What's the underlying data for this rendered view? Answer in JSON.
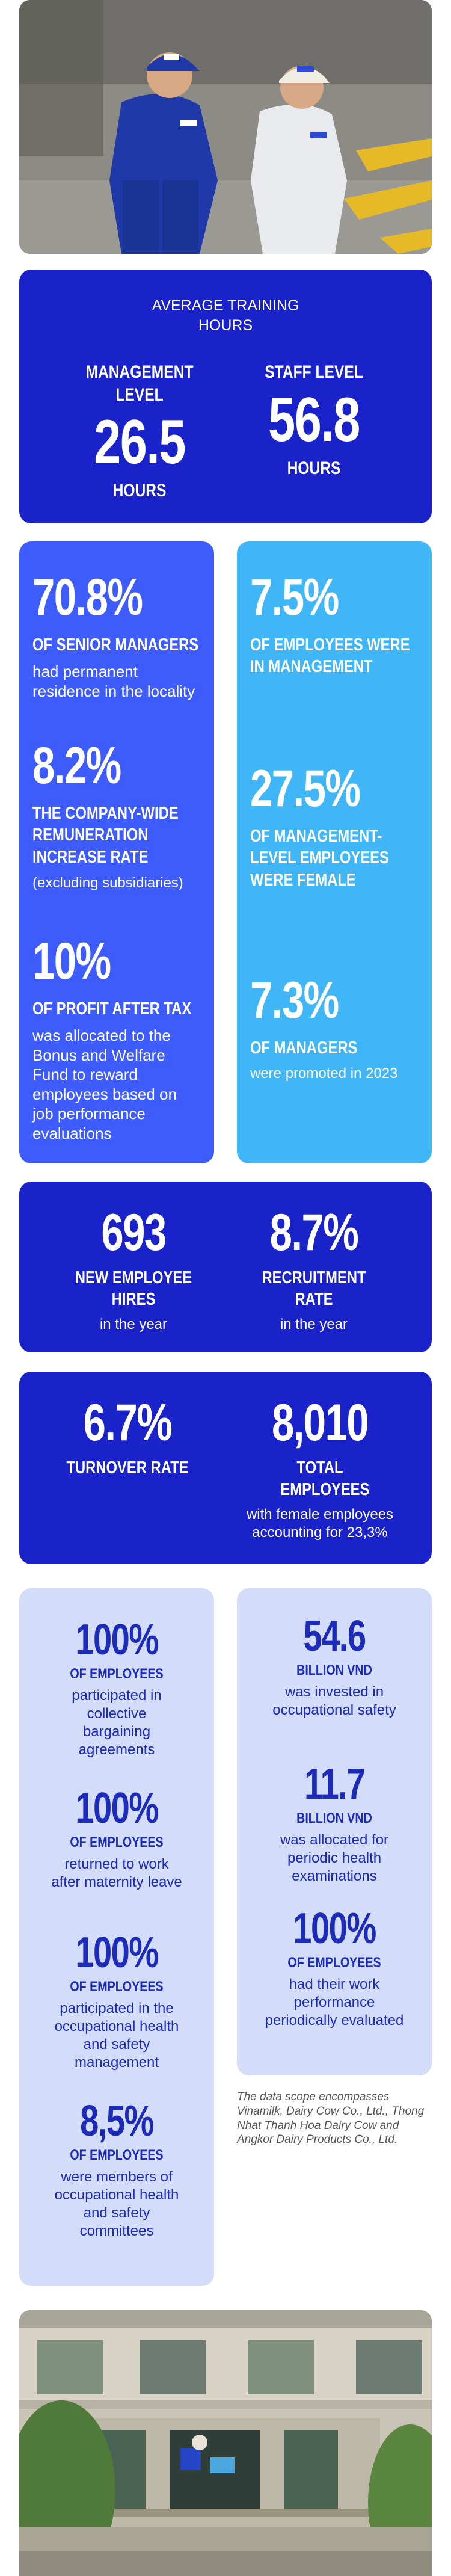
{
  "training": {
    "title": "AVERAGE TRAINING HOURS",
    "management": {
      "label": "MANAGEMENT LEVEL",
      "value": "26.5",
      "unit": "HOURS"
    },
    "staff": {
      "label": "STAFF LEVEL",
      "value": "56.8",
      "unit": "HOURS"
    }
  },
  "left_stats": [
    {
      "value": "70.8%",
      "label": "OF SENIOR MANAGERS",
      "text": "had permanent residence in the locality"
    },
    {
      "value": "8.2%",
      "label": "THE COMPANY-WIDE REMUNERATION INCREASE RATE",
      "text": "(excluding subsidiaries)"
    },
    {
      "value": "10%",
      "label": "OF PROFIT AFTER TAX",
      "text": "was allocated to the Bonus and Welfare Fund to reward employees based on job performance evaluations"
    }
  ],
  "right_stats": [
    {
      "value": "7.5%",
      "label": "OF EMPLOYEES WERE IN MANAGEMENT"
    },
    {
      "value": "27.5%",
      "label": "OF MANAGEMENT-LEVEL EMPLOYEES WERE FEMALE"
    },
    {
      "value": "7.3%",
      "label": "OF MANAGERS",
      "text": "were promoted in 2023"
    }
  ],
  "recruit": {
    "hires": {
      "value": "693",
      "label": "NEW EMPLOYEE HIRES",
      "text": "in the year"
    },
    "rate": {
      "value": "8.7%",
      "label": "RECRUITMENT RATE",
      "text": "in the year"
    }
  },
  "turnover": {
    "rate": {
      "value": "6.7%",
      "label": "TURNOVER RATE"
    },
    "total": {
      "value": "8,010",
      "label": "TOTAL EMPLOYEES",
      "text": "with female employees accounting for 23,3%"
    }
  },
  "safety_left": [
    {
      "value": "100%",
      "label": "OF EMPLOYEES",
      "text": "participated in collective bargaining agreements"
    },
    {
      "value": "100%",
      "label": "OF EMPLOYEES",
      "text": "returned to work after maternity leave"
    },
    {
      "value": "100%",
      "label": "OF EMPLOYEES",
      "text": "participated in the occupational health and safety management"
    },
    {
      "value": "8,5%",
      "label": "OF EMPLOYEES",
      "text": "were members of occupational health and safety committees"
    }
  ],
  "safety_right": [
    {
      "value": "54.6",
      "label": "BILLION VND",
      "text": "was invested in occupational safety"
    },
    {
      "value": "11.7",
      "label": "BILLION VND",
      "text": "was allocated for periodic health examinations"
    },
    {
      "value": "100%",
      "label": "OF EMPLOYEES",
      "text": "had their work performance periodically evaluated"
    }
  ],
  "note": "The data scope encompasses Vinamilk, Dairy Cow Co., Ltd., Thong Nhat Thanh Hoa Dairy Cow and Angkor Dairy Products Co., Ltd.",
  "photos": {
    "top_badges": [
      "Vinamilk",
      "Vinamilk"
    ]
  }
}
